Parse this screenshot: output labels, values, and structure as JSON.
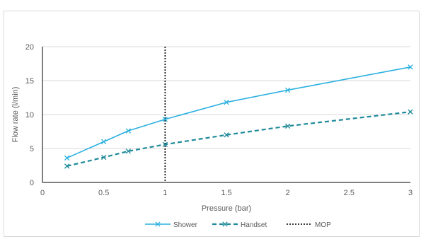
{
  "chart_data": {
    "type": "line",
    "xlabel": "Pressure (bar)",
    "ylabel": "Flow rate (l/min)",
    "xlim": [
      0,
      3
    ],
    "ylim": [
      0,
      20
    ],
    "x_ticks": [
      0,
      0.5,
      1,
      1.5,
      2,
      2.5,
      3
    ],
    "x_tick_labels": [
      "0",
      "0.5",
      "1",
      "1.5",
      "2",
      "2.5",
      "3"
    ],
    "y_ticks": [
      0,
      5,
      10,
      15,
      20
    ],
    "y_tick_labels": [
      "0",
      "5",
      "10",
      "15",
      "20"
    ],
    "grid": "horizontal",
    "legend_position": "bottom",
    "series": [
      {
        "name": "Shower",
        "color": "#2ab0e0",
        "line_style": "solid",
        "marker": "x",
        "x": [
          0.2,
          0.5,
          0.7,
          1.0,
          1.5,
          2.0,
          3.0
        ],
        "y": [
          3.6,
          6.0,
          7.6,
          9.3,
          11.8,
          13.6,
          17.0
        ]
      },
      {
        "name": "Handset",
        "color": "#1e8a9a",
        "line_style": "dashed",
        "marker": "x",
        "x": [
          0.2,
          0.5,
          0.7,
          1.0,
          1.5,
          2.0,
          3.0
        ],
        "y": [
          2.4,
          3.7,
          4.6,
          5.6,
          7.0,
          8.3,
          10.4
        ]
      }
    ],
    "reference_lines": [
      {
        "name": "MOP",
        "orientation": "vertical",
        "x": 1.0,
        "color": "#000000",
        "line_style": "dotted"
      }
    ]
  }
}
